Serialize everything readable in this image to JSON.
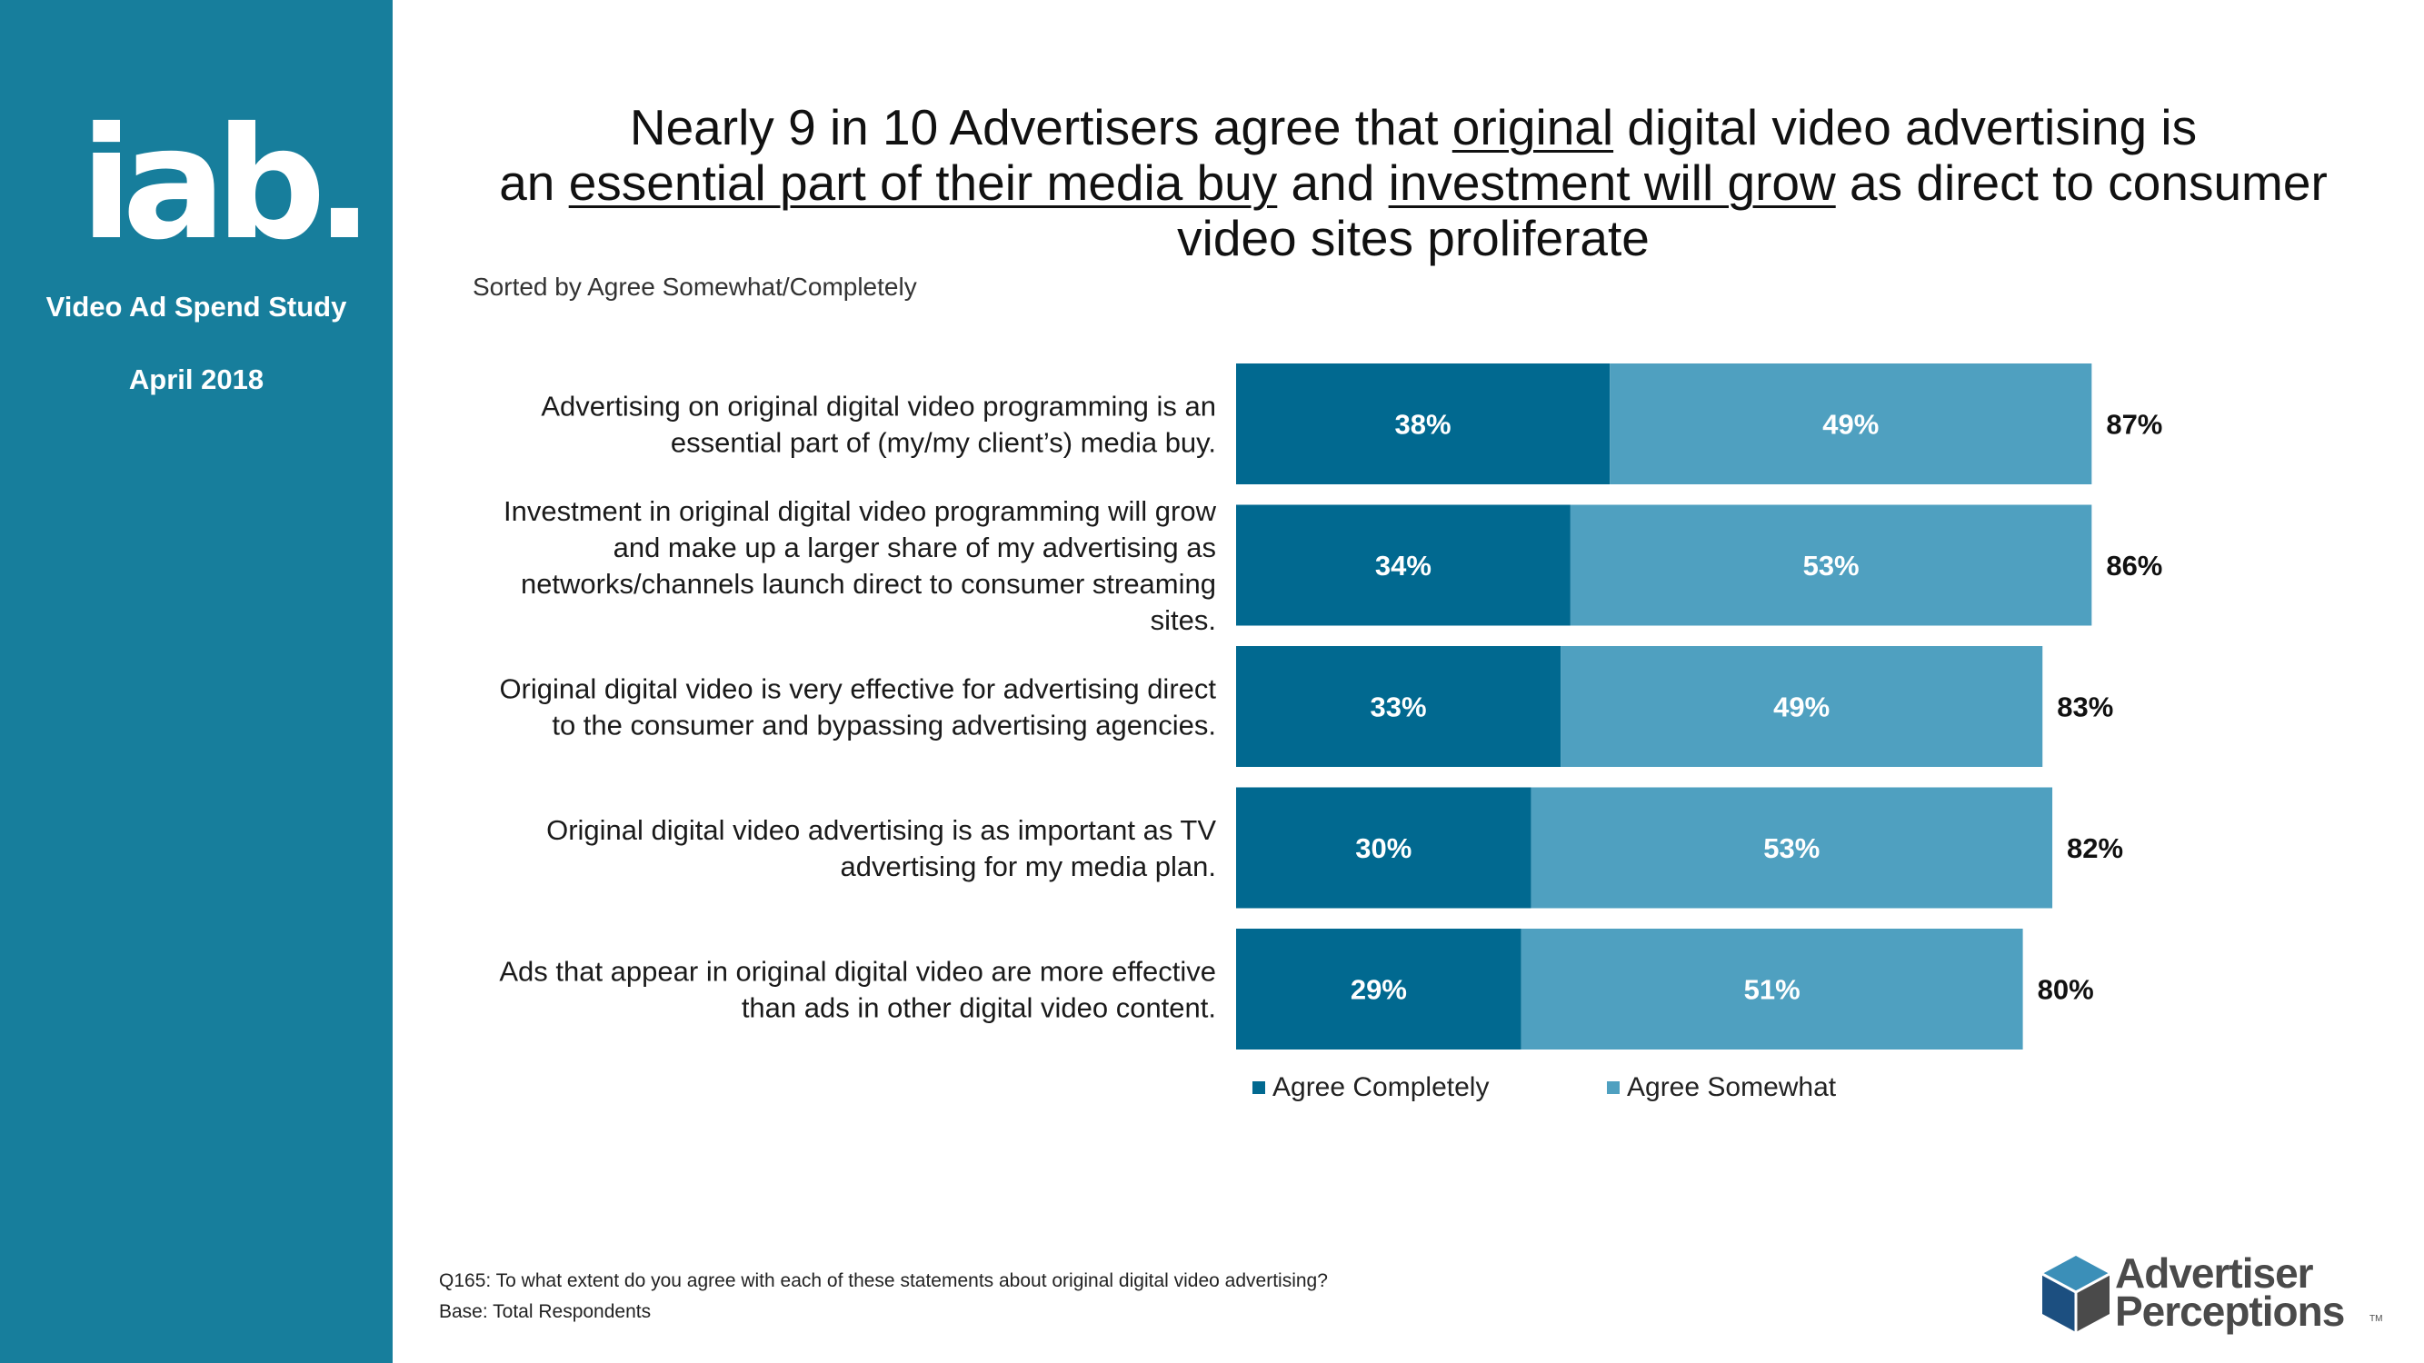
{
  "sidebar": {
    "logo_text": "iab.",
    "study_name": "Video Ad Spend Study",
    "date": "April 2018"
  },
  "title": {
    "line1_a": "Nearly 9 in 10 Advertisers agree that ",
    "line1_u": "original",
    "line1_b": " digital video advertising is",
    "line2_a": "an ",
    "line2_u1": "essential part of their media buy",
    "line2_b": " and ",
    "line2_u2": "investment will grow",
    "line2_c": " as direct to consumer",
    "line3": "video sites proliferate"
  },
  "subtitle": "Sorted by Agree Somewhat/Completely",
  "colors": {
    "agree_completely": "#016990",
    "agree_somewhat": "#4fa0c0",
    "sidebar": "#177e9c"
  },
  "chart_data": {
    "type": "bar",
    "orientation": "horizontal",
    "stacked": true,
    "categories": [
      [
        "Advertising on original digital video programming is an",
        "essential part of (my/my client’s) media buy."
      ],
      [
        "Investment in original digital video programming will grow",
        "and make up a larger share of my advertising as",
        "networks/channels launch direct to consumer streaming",
        "sites."
      ],
      [
        "Original digital video is very effective for advertising direct",
        "to the consumer and bypassing advertising agencies."
      ],
      [
        "Original digital video advertising is as important as TV",
        "advertising for my media plan."
      ],
      [
        "Ads that appear in original digital video are more effective",
        "than ads in other digital video content."
      ]
    ],
    "series": [
      {
        "name": "Agree Completely",
        "values": [
          38,
          34,
          33,
          30,
          29
        ],
        "labels": [
          "38%",
          "34%",
          "33%",
          "30%",
          "29%"
        ]
      },
      {
        "name": "Agree Somewhat",
        "values": [
          49,
          53,
          49,
          53,
          51
        ],
        "labels": [
          "49%",
          "53%",
          "49%",
          "53%",
          "51%"
        ]
      }
    ],
    "totals": [
      87,
      86,
      83,
      82,
      80
    ],
    "total_labels": [
      "87%",
      "86%",
      "83%",
      "82%",
      "80%"
    ],
    "xlim": [
      0,
      100
    ],
    "legend_position": "bottom"
  },
  "legend": {
    "completely": "Agree Completely",
    "somewhat": "Agree Somewhat"
  },
  "footnotes": {
    "question": "Q165: To what extent do you agree with each of these statements about original digital video advertising?",
    "base": "Base: Total Respondents"
  },
  "brand": {
    "name_line1": "Advertiser",
    "name_line2": "Perceptions",
    "tm": "TM"
  }
}
